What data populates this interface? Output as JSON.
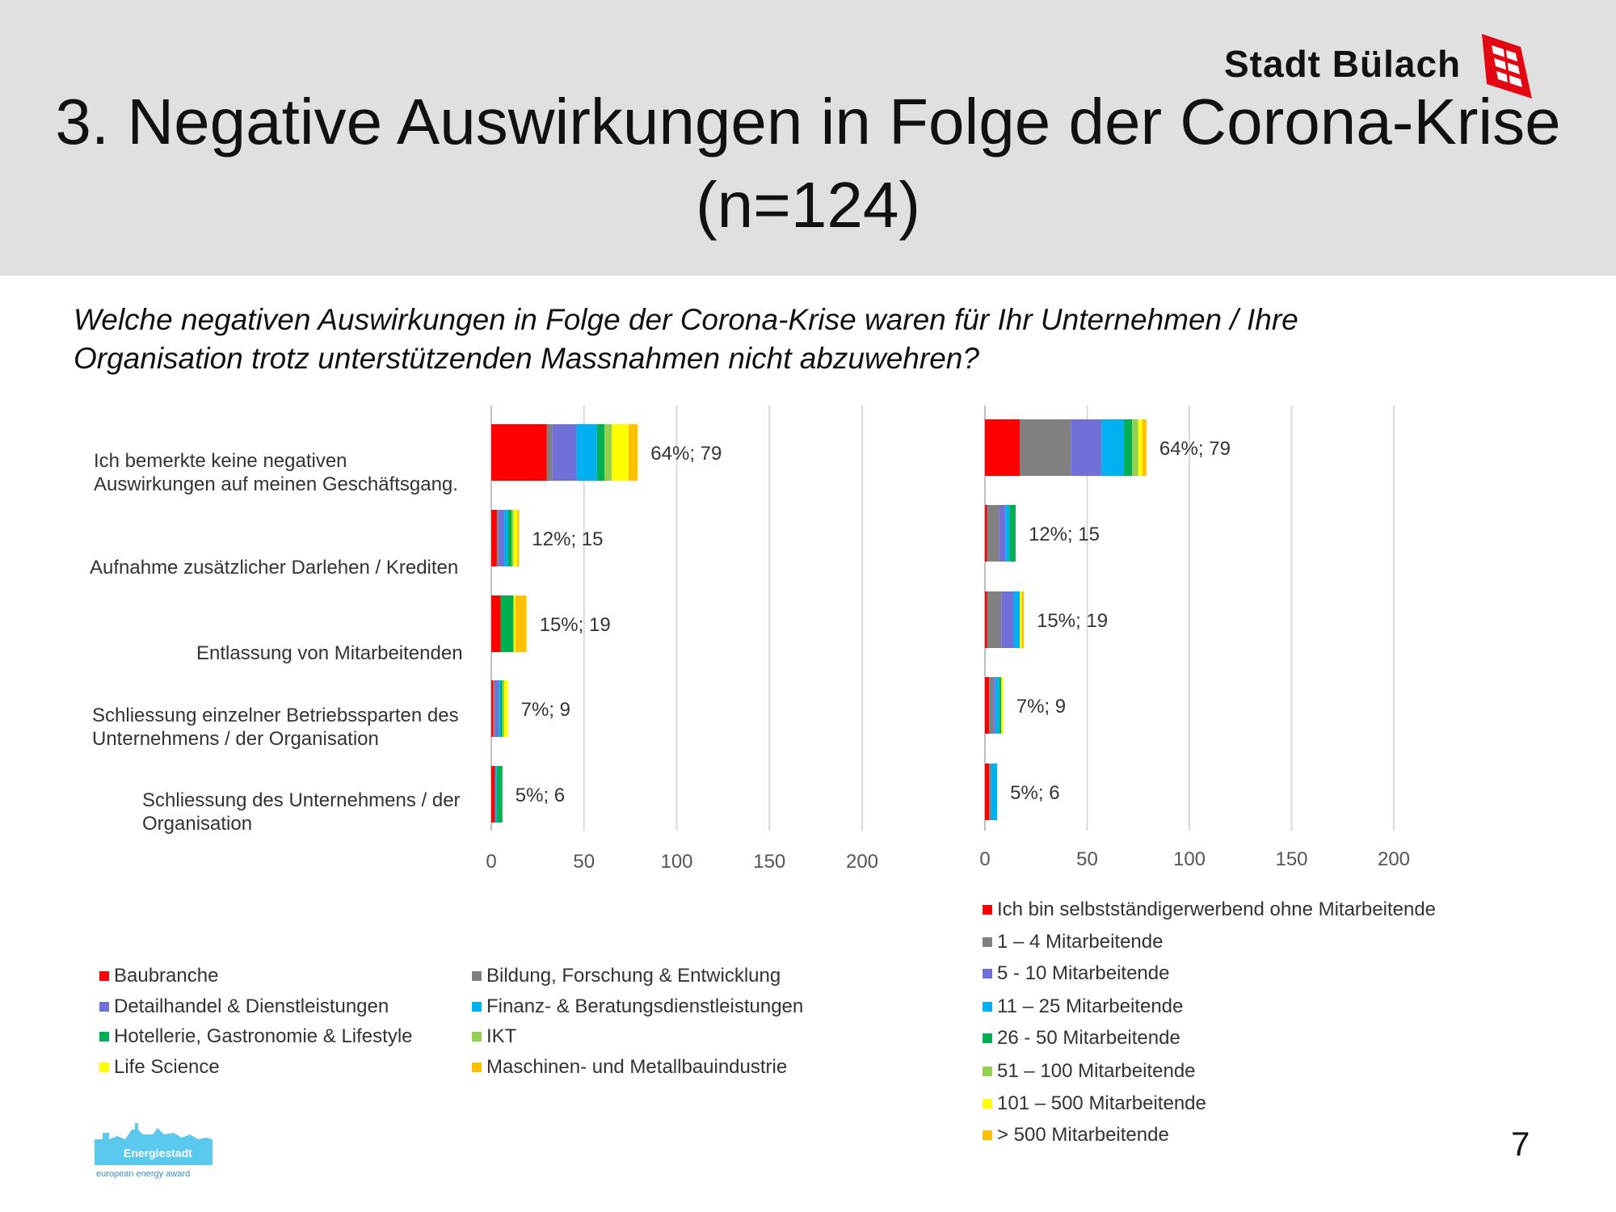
{
  "header": {
    "title_line1": "3. Negative Auswirkungen in Folge der Corona-Krise",
    "title_line2": "(n=124)",
    "logo_text": "Stadt Bülach"
  },
  "question": "Welche negativen Auswirkungen in Folge der Corona-Krise waren für Ihr Unternehmen / Ihre Organisation trotz unterstützenden Massnahmen nicht abzuwehren?",
  "footer": {
    "page_number": "7",
    "energy_logo_text": "Energiestadt",
    "energy_logo_sub": "european energy award"
  },
  "chart_data": [
    {
      "type": "bar",
      "orientation": "horizontal",
      "stacked": true,
      "title": "",
      "xlabel": "",
      "ylabel": "",
      "xlim": [
        0,
        200
      ],
      "xticks": [
        0,
        50,
        100,
        150,
        200
      ],
      "grid": true,
      "legend_position": "bottom-left",
      "categories": [
        "Ich bemerkte keine negativen Auswirkungen auf meinen Geschäftsgang.",
        "Aufnahme zusätzlicher Darlehen / Krediten",
        "Entlassung von Mitarbeitenden",
        "Schliessung einzelner Betriebssparten des Unternehmens / der Organisation",
        "Schliessung des Unternehmens / der Organisation"
      ],
      "data_labels": [
        "64%; 79",
        "12%; 15",
        "15%; 19",
        "7%; 9",
        "5%; 6"
      ],
      "series": [
        {
          "name": "Baubranche",
          "color": "#ff0000",
          "values": [
            30,
            3,
            5,
            1,
            2
          ]
        },
        {
          "name": "Bildung, Forschung & Entwicklung",
          "color": "#808080",
          "values": [
            3,
            1,
            0,
            1,
            0
          ]
        },
        {
          "name": "Detailhandel & Dienstleistungen",
          "color": "#7070d8",
          "values": [
            13,
            3,
            0,
            2,
            0
          ]
        },
        {
          "name": "Finanz- & Beratungsdienstleistungen",
          "color": "#00b0f0",
          "values": [
            11,
            2,
            0,
            1,
            1
          ]
        },
        {
          "name": "Hotellerie, Gastronomie & Lifestyle",
          "color": "#00b050",
          "values": [
            4,
            2,
            7,
            1,
            3
          ]
        },
        {
          "name": "IKT",
          "color": "#92d050",
          "values": [
            4,
            1,
            0,
            1,
            0
          ]
        },
        {
          "name": "Life Science",
          "color": "#ffff00",
          "values": [
            9,
            2,
            1,
            2,
            0
          ]
        },
        {
          "name": "Maschinen- und Metallbauindustrie",
          "color": "#ffc000",
          "values": [
            5,
            1,
            6,
            0,
            0
          ]
        }
      ]
    },
    {
      "type": "bar",
      "orientation": "horizontal",
      "stacked": true,
      "title": "",
      "xlabel": "",
      "ylabel": "",
      "xlim": [
        0,
        200
      ],
      "xticks": [
        0,
        50,
        100,
        150,
        200
      ],
      "grid": true,
      "legend_position": "bottom-right",
      "categories": [
        "Ich bemerkte keine negativen Auswirkungen auf meinen Geschäftsgang.",
        "Aufnahme zusätzlicher Darlehen / Krediten",
        "Entlassung von Mitarbeitenden",
        "Schliessung einzelner Betriebssparten des Unternehmens / der Organisation",
        "Schliessung des Unternehmens / der Organisation"
      ],
      "data_labels": [
        "64%; 79",
        "12%; 15",
        "15%; 19",
        "7%; 9",
        "5%; 6"
      ],
      "series": [
        {
          "name": "Ich bin selbstständigerwerbend ohne Mitarbeitende",
          "color": "#ff0000",
          "values": [
            17,
            1,
            1,
            2,
            2
          ]
        },
        {
          "name": "1 – 4 Mitarbeitende",
          "color": "#808080",
          "values": [
            25,
            6,
            7,
            2,
            1
          ]
        },
        {
          "name": "5 - 10 Mitarbeitende",
          "color": "#7070d8",
          "values": [
            15,
            3,
            6,
            1,
            0
          ]
        },
        {
          "name": "11 – 25 Mitarbeitende",
          "color": "#00b0f0",
          "values": [
            11,
            2,
            3,
            2,
            3
          ]
        },
        {
          "name": "26 - 50 Mitarbeitende",
          "color": "#00b050",
          "values": [
            4,
            3,
            0,
            1,
            0
          ]
        },
        {
          "name": "51 – 100 Mitarbeitende",
          "color": "#92d050",
          "values": [
            3,
            0,
            0,
            0,
            0
          ]
        },
        {
          "name": "101 – 500 Mitarbeitende",
          "color": "#ffff00",
          "values": [
            2,
            0,
            1,
            1,
            0
          ]
        },
        {
          "name": "> 500 Mitarbeitende",
          "color": "#ffc000",
          "values": [
            2,
            0,
            1,
            0,
            0
          ]
        }
      ]
    }
  ]
}
